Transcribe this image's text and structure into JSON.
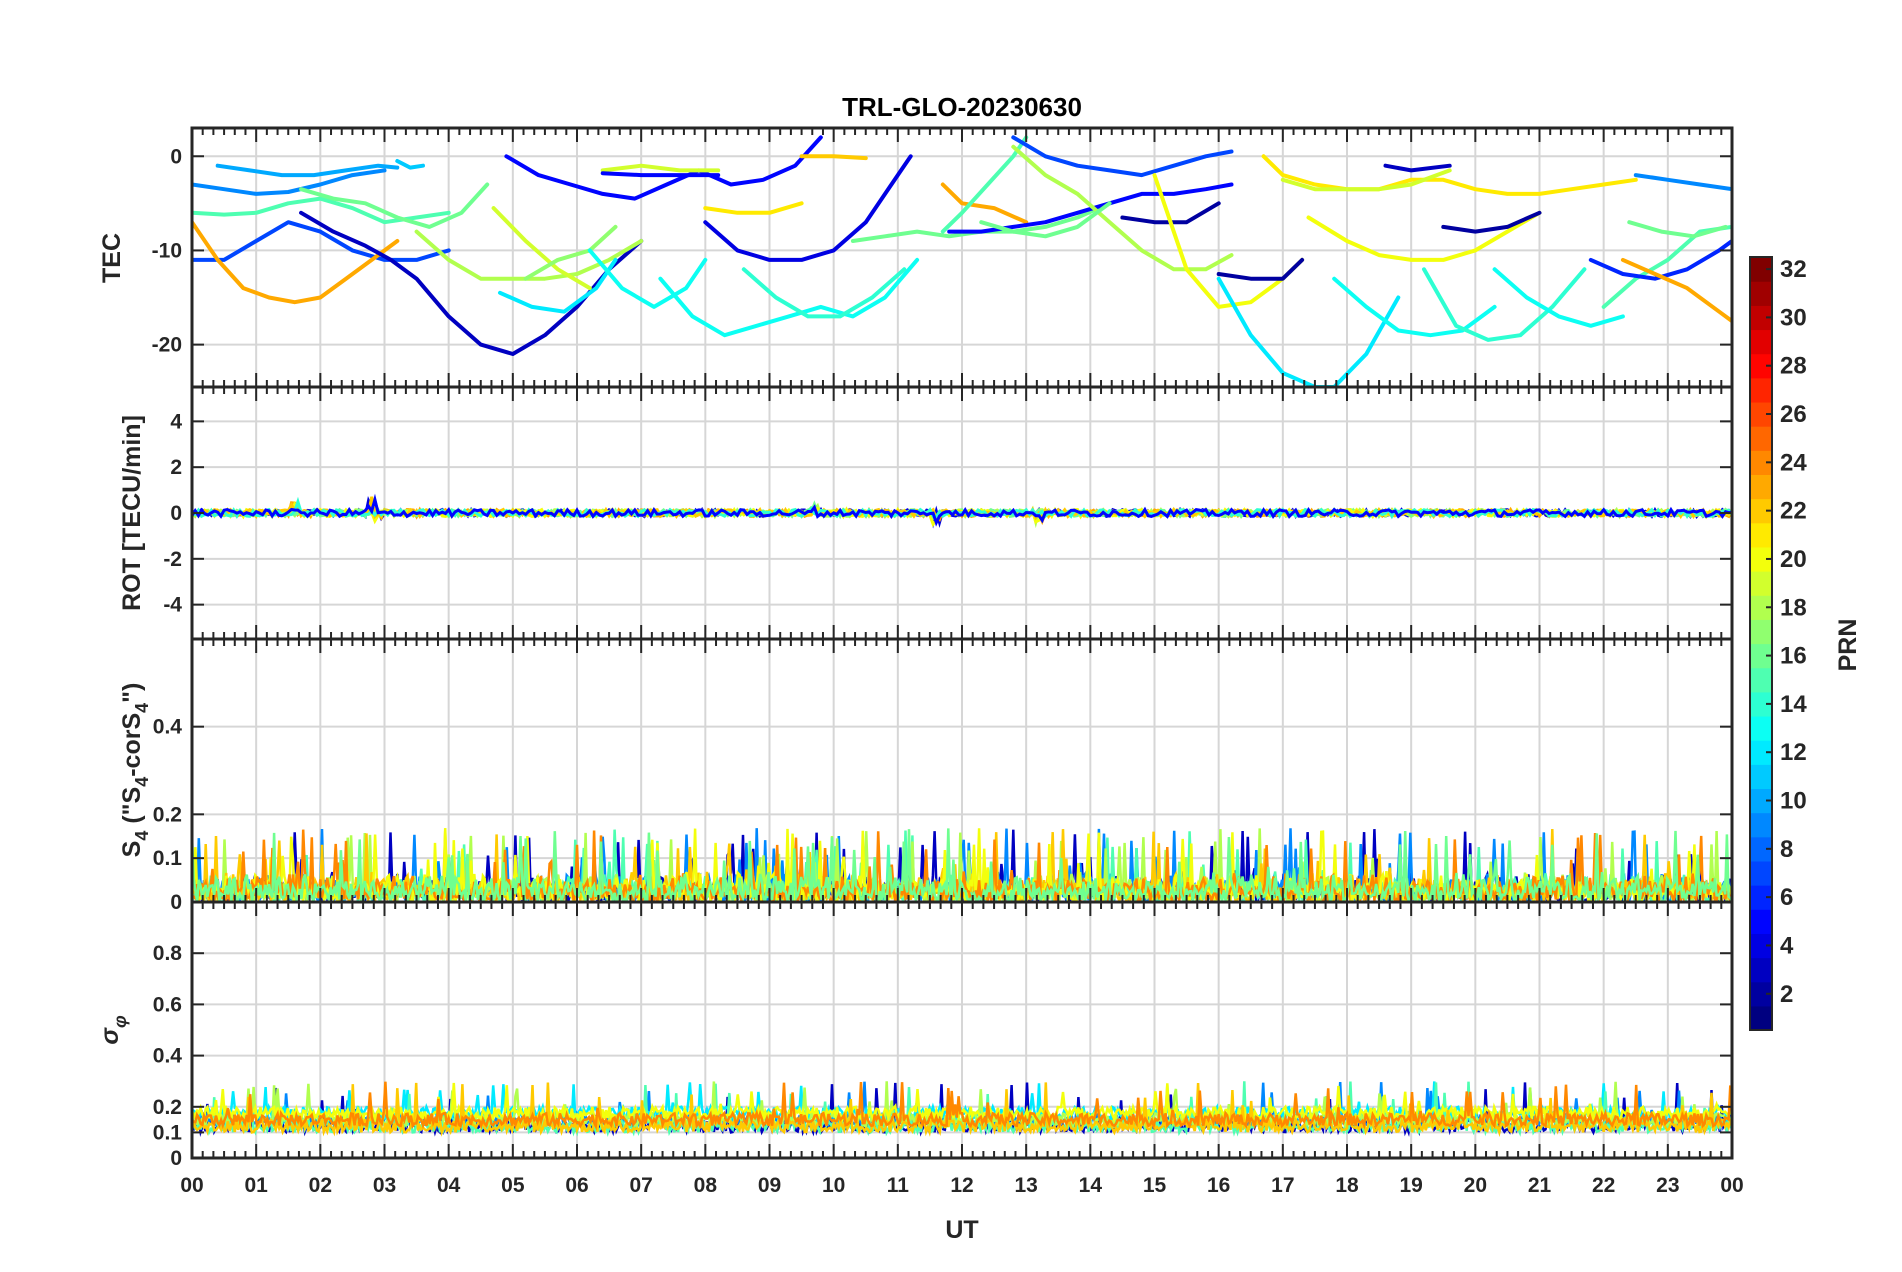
{
  "chart_data": {
    "type": "line",
    "title": "TRL-GLO-20230630",
    "xlabel": "UT",
    "x_range": [
      0,
      24
    ],
    "x_tick_labels": [
      "00",
      "01",
      "02",
      "03",
      "04",
      "05",
      "06",
      "07",
      "08",
      "09",
      "10",
      "11",
      "12",
      "13",
      "14",
      "15",
      "16",
      "17",
      "18",
      "19",
      "20",
      "21",
      "22",
      "23",
      "00"
    ],
    "grid": true,
    "colorbar": {
      "label": "PRN",
      "range": [
        1,
        32
      ],
      "ticks": [
        2,
        4,
        6,
        8,
        10,
        12,
        14,
        16,
        18,
        20,
        22,
        24,
        26,
        28,
        30,
        32
      ],
      "tick_labels": [
        "2",
        "4",
        "6",
        "8",
        "10",
        "12",
        "14",
        "16",
        "18",
        "20",
        "22",
        "24",
        "26",
        "28",
        "30",
        "32"
      ],
      "colormap": "jet"
    },
    "panels": [
      {
        "id": "tec",
        "ylabel": "TEC",
        "ylim": [
          -24.5,
          3
        ],
        "y_ticks": [
          -20,
          -10,
          0
        ],
        "y_tick_labels": [
          "-20",
          "-10",
          "0"
        ],
        "series": [
          {
            "prn": 9,
            "x": [
              0.0,
              0.5,
              1.0,
              1.5,
              2.0,
              2.5,
              3.0
            ],
            "y": [
              -3,
              -3.5,
              -4,
              -3.8,
              -3,
              -2,
              -1.5
            ]
          },
          {
            "prn": 10,
            "x": [
              0.4,
              0.9,
              1.4,
              1.9,
              2.4,
              2.9,
              3.2
            ],
            "y": [
              -1,
              -1.5,
              -2,
              -2,
              -1.5,
              -1,
              -1.2
            ]
          },
          {
            "prn": 11,
            "x": [
              3.2,
              3.4,
              3.6
            ],
            "y": [
              -0.5,
              -1.2,
              -1
            ]
          },
          {
            "prn": 15,
            "x": [
              0.0,
              0.5,
              1.0,
              1.5,
              2.0,
              2.5,
              3.0,
              3.5,
              4.0
            ],
            "y": [
              -6,
              -6.2,
              -6,
              -5,
              -4.5,
              -5.5,
              -7,
              -6.5,
              -6
            ]
          },
          {
            "prn": 16,
            "x": [
              1.7,
              2.2,
              2.7,
              3.2,
              3.7,
              4.2,
              4.6
            ],
            "y": [
              -3.5,
              -4.5,
              -5,
              -6.5,
              -7.5,
              -6,
              -3
            ]
          },
          {
            "prn": 7,
            "x": [
              0.0,
              0.5,
              1.0,
              1.5,
              2.0,
              2.5,
              3.0,
              3.5,
              4.0
            ],
            "y": [
              -11,
              -11,
              -9,
              -7,
              -8,
              -10,
              -11,
              -11,
              -10
            ]
          },
          {
            "prn": 23,
            "x": [
              0.0,
              0.4,
              0.8,
              1.2,
              1.6,
              2.0,
              2.4,
              2.8,
              3.2
            ],
            "y": [
              -7,
              -11,
              -14,
              -15,
              -15.5,
              -15,
              -13,
              -11,
              -9
            ]
          },
          {
            "prn": 3,
            "x": [
              1.7,
              2.2,
              2.7,
              3.1,
              3.5,
              4.0,
              4.5,
              5.0,
              5.5,
              6.0,
              6.5,
              7.0
            ],
            "y": [
              -6,
              -8,
              -9.5,
              -11,
              -13,
              -17,
              -20,
              -21,
              -19,
              -16,
              -12,
              -9
            ]
          },
          {
            "prn": 18,
            "x": [
              3.5,
              4.0,
              4.5,
              5.0,
              5.5,
              6.0,
              6.5,
              7.0
            ],
            "y": [
              -8,
              -11,
              -13,
              -13,
              -13,
              -12.5,
              -11,
              -9
            ]
          },
          {
            "prn": 5,
            "x": [
              4.9,
              5.4,
              5.9,
              6.4,
              6.9,
              7.4,
              7.9,
              8.4,
              8.9,
              9.4,
              9.8
            ],
            "y": [
              0,
              -2,
              -3,
              -4,
              -4.5,
              -3,
              -1.5,
              -3,
              -2.5,
              -1,
              2
            ]
          },
          {
            "prn": 19,
            "x": [
              4.7,
              5.2,
              5.7,
              6.2
            ],
            "y": [
              -5.5,
              -9,
              -12,
              -14
            ]
          },
          {
            "prn": 12,
            "x": [
              4.8,
              5.3,
              5.8,
              6.3,
              6.6
            ],
            "y": [
              -14.5,
              -16,
              -16.5,
              -14,
              -11
            ]
          },
          {
            "prn": 17,
            "x": [
              5.2,
              5.7,
              6.2,
              6.6
            ],
            "y": [
              -13,
              -11,
              -10,
              -7.5
            ]
          },
          {
            "prn": 13,
            "x": [
              6.2,
              6.7,
              7.2,
              7.7,
              8.0
            ],
            "y": [
              -10,
              -14,
              -16,
              -14,
              -11
            ]
          },
          {
            "prn": 19,
            "x": [
              6.4,
              7.0,
              7.6,
              8.2
            ],
            "y": [
              -1.5,
              -1,
              -1.5,
              -1.5
            ]
          },
          {
            "prn": 5,
            "x": [
              6.4,
              7.0,
              7.6,
              8.2
            ],
            "y": [
              -1.8,
              -2,
              -2,
              -2
            ]
          },
          {
            "prn": 13,
            "x": [
              7.3,
              7.8,
              8.3,
              8.8,
              9.3,
              9.8,
              10.3,
              10.8,
              11.3
            ],
            "y": [
              -13,
              -17,
              -19,
              -18,
              -17,
              -16,
              -17,
              -15,
              -11
            ]
          },
          {
            "prn": 14,
            "x": [
              8.6,
              9.1,
              9.6,
              10.1,
              10.6,
              11.1
            ],
            "y": [
              -12,
              -15,
              -17,
              -17,
              -15,
              -12
            ]
          },
          {
            "prn": 21,
            "x": [
              8.0,
              8.5,
              9.0,
              9.5
            ],
            "y": [
              -5.5,
              -6,
              -6,
              -5
            ]
          },
          {
            "prn": 4,
            "x": [
              8.0,
              8.5,
              9.0,
              9.5,
              10.0,
              10.5,
              11.0,
              11.2
            ],
            "y": [
              -7,
              -10,
              -11,
              -11,
              -10,
              -7,
              -2,
              0
            ]
          },
          {
            "prn": 22,
            "x": [
              9.5,
              10.0,
              10.5
            ],
            "y": [
              0,
              0,
              -0.2
            ]
          },
          {
            "prn": 16,
            "x": [
              10.3,
              10.8,
              11.3,
              11.8,
              12.3,
              12.8,
              13.3,
              13.8,
              14.3
            ],
            "y": [
              -9,
              -8.5,
              -8,
              -8.5,
              -8,
              -8,
              -7.5,
              -6.5,
              -5
            ]
          },
          {
            "prn": 23,
            "x": [
              11.7,
              12.0,
              12.5,
              13.0
            ],
            "y": [
              -3,
              -5,
              -5.5,
              -7
            ]
          },
          {
            "prn": 15,
            "x": [
              11.7,
              12.0,
              12.4,
              12.8,
              13.0
            ],
            "y": [
              -8,
              -6,
              -3,
              0,
              2
            ]
          },
          {
            "prn": 5,
            "x": [
              11.8,
              12.3,
              12.8,
              13.3,
              13.8,
              14.3,
              14.8,
              15.3,
              15.8,
              16.2
            ],
            "y": [
              -8,
              -8,
              -7.5,
              -7,
              -6,
              -5,
              -4,
              -4,
              -3.5,
              -3
            ]
          },
          {
            "prn": 7,
            "x": [
              12.8,
              13.3,
              13.8,
              14.3,
              14.8,
              15.3,
              15.8,
              16.2
            ],
            "y": [
              2,
              0,
              -1,
              -1.5,
              -2,
              -1,
              0,
              0.5
            ]
          },
          {
            "prn": 18,
            "x": [
              12.8,
              13.3,
              13.8,
              14.3,
              14.8,
              15.3,
              15.8,
              16.2
            ],
            "y": [
              1,
              -2,
              -4,
              -7,
              -10,
              -12,
              -12,
              -10.5
            ]
          },
          {
            "prn": 2,
            "x": [
              14.5,
              15.0,
              15.5,
              16.0
            ],
            "y": [
              -6.5,
              -7,
              -7,
              -5
            ]
          },
          {
            "prn": 16,
            "x": [
              12.3,
              12.8,
              13.3,
              13.8,
              14.3
            ],
            "y": [
              -7,
              -8,
              -8.5,
              -7.5,
              -5
            ]
          },
          {
            "prn": 20,
            "x": [
              15.0,
              15.5,
              16.0,
              16.5,
              17.0,
              17.3
            ],
            "y": [
              -2,
              -12,
              -16,
              -15.5,
              -13,
              -11
            ]
          },
          {
            "prn": 2,
            "x": [
              16.0,
              16.5,
              17.0,
              17.3
            ],
            "y": [
              -12.5,
              -13,
              -13,
              -11
            ]
          },
          {
            "prn": 12,
            "x": [
              16.0,
              16.5,
              17.0,
              17.5,
              17.8,
              18.3,
              18.8
            ],
            "y": [
              -13,
              -19,
              -23,
              -24.5,
              -24.5,
              -21,
              -15
            ]
          },
          {
            "prn": 21,
            "x": [
              16.7,
              17.0,
              17.5,
              18.0,
              18.5,
              19.0,
              19.5,
              20.0,
              20.5,
              21.0,
              21.5,
              22.0,
              22.5
            ],
            "y": [
              0,
              -2,
              -3,
              -3.5,
              -3.5,
              -2.5,
              -2.5,
              -3.5,
              -4,
              -4,
              -3.5,
              -3,
              -2.5
            ]
          },
          {
            "prn": 19,
            "x": [
              17.0,
              17.5,
              18.0,
              18.5,
              19.0,
              19.6
            ],
            "y": [
              -2.5,
              -3.5,
              -3.5,
              -3.5,
              -3,
              -1.5
            ]
          },
          {
            "prn": 3,
            "x": [
              18.6,
              19.0,
              19.6
            ],
            "y": [
              -1,
              -1.5,
              -1
            ]
          },
          {
            "prn": 20,
            "x": [
              17.4,
              18.0,
              18.5,
              19.0,
              19.5,
              20.0,
              20.5,
              21.0
            ],
            "y": [
              -6.5,
              -9,
              -10.5,
              -11,
              -11,
              -10,
              -8,
              -6
            ]
          },
          {
            "prn": 13,
            "x": [
              17.8,
              18.3,
              18.8,
              19.3,
              19.8,
              20.3
            ],
            "y": [
              -13,
              -16,
              -18.5,
              -19,
              -18.5,
              -16
            ]
          },
          {
            "prn": 14,
            "x": [
              19.2,
              19.7,
              20.2,
              20.7,
              21.2,
              21.7
            ],
            "y": [
              -12,
              -18,
              -19.5,
              -19,
              -16,
              -12
            ]
          },
          {
            "prn": 2,
            "x": [
              19.5,
              20.0,
              20.5,
              21.0
            ],
            "y": [
              -7.5,
              -8,
              -7.5,
              -6
            ]
          },
          {
            "prn": 13,
            "x": [
              20.3,
              20.8,
              21.3,
              21.8,
              22.3
            ],
            "y": [
              -12,
              -15,
              -17,
              -18,
              -17
            ]
          },
          {
            "prn": 15,
            "x": [
              22.0,
              22.5,
              23.0,
              23.5,
              24.0
            ],
            "y": [
              -16,
              -13,
              -11,
              -8,
              -7.5
            ]
          },
          {
            "prn": 6,
            "x": [
              21.8,
              22.3,
              22.8,
              23.3,
              23.8,
              24.0
            ],
            "y": [
              -11,
              -12.5,
              -13,
              -12,
              -10,
              -9
            ]
          },
          {
            "prn": 23,
            "x": [
              22.3,
              22.8,
              23.3,
              23.8,
              24.0
            ],
            "y": [
              -11,
              -12.5,
              -14,
              -16.5,
              -17.5
            ]
          },
          {
            "prn": 16,
            "x": [
              22.4,
              22.9,
              23.4,
              23.9
            ],
            "y": [
              -7,
              -8,
              -8.5,
              -7.5
            ]
          },
          {
            "prn": 9,
            "x": [
              22.5,
              23.0,
              23.5,
              24.0
            ],
            "y": [
              -2,
              -2.5,
              -3,
              -3.5
            ]
          }
        ]
      },
      {
        "id": "rot",
        "ylabel": "ROT [TECU/min]",
        "ylim": [
          -5.5,
          5.5
        ],
        "y_ticks": [
          -4,
          -2,
          0,
          2,
          4
        ],
        "y_tick_labels": [
          "-4",
          "-2",
          "0",
          "2",
          "4"
        ],
        "baseline": 0,
        "noise_level": 0.15,
        "spikes": [
          {
            "x": 1.6,
            "y": 0.5
          },
          {
            "x": 2.8,
            "y": 0.8
          },
          {
            "x": 2.9,
            "y": -0.4
          },
          {
            "x": 9.7,
            "y": 0.4
          },
          {
            "x": 11.6,
            "y": -0.5
          },
          {
            "x": 13.2,
            "y": -0.4
          }
        ]
      },
      {
        "id": "s4",
        "ylabel": "S4 (\"S4-corS4\")",
        "ylim": [
          0,
          0.6
        ],
        "y_ticks": [
          0,
          0.1,
          0.2,
          0.4
        ],
        "y_tick_labels": [
          "0",
          "0.1",
          "0.2",
          "0.4"
        ],
        "typical_level": 0.05,
        "max_level": 0.17
      },
      {
        "id": "sigma",
        "ylabel": "σ φ",
        "ylim": [
          0,
          1
        ],
        "y_ticks": [
          0,
          0.1,
          0.2,
          0.4,
          0.6,
          0.8
        ],
        "y_tick_labels": [
          "0",
          "0.1",
          "0.2",
          "0.4",
          "0.6",
          "0.8"
        ],
        "typical_level": 0.15,
        "max_level": 0.3
      }
    ]
  },
  "labels": {
    "title": "TRL-GLO-20230630",
    "x_axis": "UT",
    "colorbar": "PRN",
    "tec_y": "TEC",
    "rot_y": "ROT [TECU/min]",
    "s4_y_main": "S",
    "s4_y_sub": "4",
    "s4_y_mid": " (\"S",
    "s4_y_mid2": "-corS",
    "s4_y_end": "\")",
    "sigma_y_main": "σ",
    "sigma_y_sub": "φ"
  }
}
